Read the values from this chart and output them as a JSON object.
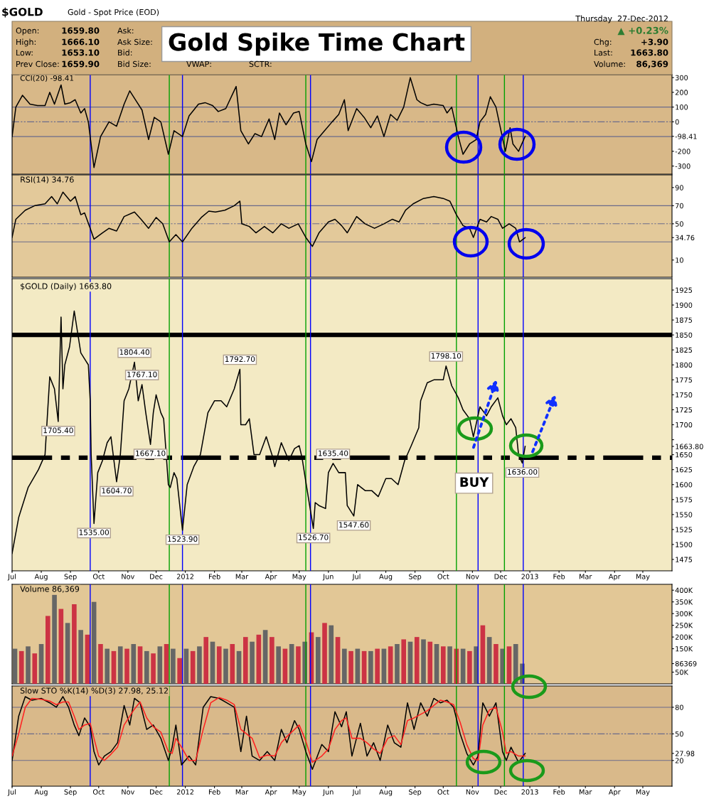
{
  "chart_data": [
    {
      "type": "line",
      "title": "Gold Spike Time Chart",
      "subtitle": "CCI(20) -98.41",
      "annotations": [
        "$GOLD",
        "Gold - Spot Price (EOD)",
        "Open:",
        "1659.80",
        "High:",
        "1666.10",
        "Low:",
        "1653.10",
        "Prev Close:",
        "1659.90",
        "Ask:",
        "Ask Size:",
        "Bid:",
        "Bid Size:",
        "VWAP:",
        "SCTR:",
        "Thursday  27-Dec-2012",
        "▲ +0.23%",
        "Chg:",
        "+3.90",
        "Last:",
        "1663.80",
        "Volume:",
        "86,369"
      ],
      "x": [
        "2011-07-01",
        "2011-07-05",
        "2011-07-12",
        "2011-07-20",
        "2011-07-28",
        "2011-08-05",
        "2011-08-10",
        "2011-08-15",
        "2011-08-22",
        "2011-08-26",
        "2011-09-01",
        "2011-09-06",
        "2011-09-12",
        "2011-09-16",
        "2011-09-20",
        "2011-09-26",
        "2011-10-03",
        "2011-10-12",
        "2011-10-20",
        "2011-10-28",
        "2011-11-03",
        "2011-11-10",
        "2011-11-16",
        "2011-11-23",
        "2011-11-29",
        "2011-12-06",
        "2011-12-14",
        "2011-12-20",
        "2011-12-29",
        "2012-01-05",
        "2012-01-15",
        "2012-01-22",
        "2012-01-30",
        "2012-02-05",
        "2012-02-13",
        "2012-02-24",
        "2012-02-29",
        "2012-03-08",
        "2012-03-15",
        "2012-03-22",
        "2012-03-30",
        "2012-04-05",
        "2012-04-10",
        "2012-04-17",
        "2012-04-25",
        "2012-05-01",
        "2012-05-08",
        "2012-05-14",
        "2012-05-20",
        "2012-05-28",
        "2012-06-05",
        "2012-06-12",
        "2012-06-18",
        "2012-06-22",
        "2012-07-01",
        "2012-07-09",
        "2012-07-16",
        "2012-07-23",
        "2012-07-30",
        "2012-08-06",
        "2012-08-13",
        "2012-08-20",
        "2012-08-27",
        "2012-09-03",
        "2012-09-07",
        "2012-09-14",
        "2012-09-21",
        "2012-10-01",
        "2012-10-05",
        "2012-10-10",
        "2012-10-17",
        "2012-10-22",
        "2012-10-29",
        "2012-11-05",
        "2012-11-09",
        "2012-11-15",
        "2012-11-20",
        "2012-11-26",
        "2012-12-01",
        "2012-12-06",
        "2012-12-11",
        "2012-12-14",
        "2012-12-20",
        "2012-12-27"
      ],
      "series": [
        {
          "color": "#000000",
          "values": [
            -100,
            100,
            180,
            120,
            110,
            110,
            200,
            120,
            250,
            120,
            130,
            150,
            60,
            90,
            0,
            -310,
            -100,
            0,
            -30,
            120,
            210,
            140,
            80,
            -120,
            30,
            0,
            -220,
            -60,
            -100,
            40,
            120,
            130,
            110,
            70,
            90,
            240,
            -60,
            -150,
            -80,
            -100,
            20,
            -120,
            60,
            -20,
            60,
            70,
            -150,
            -270,
            -120,
            -60,
            0,
            50,
            150,
            -60,
            90,
            30,
            -40,
            40,
            -100,
            50,
            10,
            100,
            300,
            150,
            130,
            110,
            120,
            110,
            60,
            100,
            -100,
            -220,
            -150,
            -120,
            0,
            50,
            170,
            100,
            -50,
            -200,
            -40,
            -150,
            -200,
            -98.41
          ]
        }
      ],
      "xlim": [
        "2011-07-01",
        "2013-06-01"
      ],
      "ylim": [
        -355,
        320
      ],
      "yticks": [
        300,
        200,
        100,
        0,
        {
          "value": -98.41,
          "label": "-98.41"
        },
        -200,
        -300
      ],
      "tick_labels": "y",
      "ref_lines": [
        {
          "axis": "y",
          "value": 100,
          "color": "#6b6b8b",
          "line_style": "solid"
        },
        {
          "axis": "y",
          "value": -100,
          "color": "#6b6b8b",
          "line_style": "solid"
        },
        {
          "axis": "y",
          "value": 0,
          "color": "#6b6b8b",
          "line_style": "dashed"
        },
        {
          "axis": "x",
          "value": "2011-09-22",
          "color": "#0000ff"
        },
        {
          "axis": "x",
          "value": "2011-12-15",
          "color": "#00a000"
        },
        {
          "axis": "x",
          "value": "2011-12-29",
          "color": "#0000ff"
        },
        {
          "axis": "x",
          "value": "2012-05-08",
          "color": "#00a000"
        },
        {
          "axis": "x",
          "value": "2012-05-13",
          "color": "#0000ff"
        },
        {
          "axis": "x",
          "value": "2012-10-15",
          "color": "#00a000"
        },
        {
          "axis": "x",
          "value": "2012-11-07",
          "color": "#0000ff"
        },
        {
          "axis": "x",
          "value": "2012-12-05",
          "color": "#00a000"
        },
        {
          "axis": "x",
          "value": "2012-12-25",
          "color": "#0000ff"
        }
      ]
    },
    {
      "type": "line",
      "title": "RSI(14) 34.76",
      "x": [
        "2011-07-01",
        "2011-07-05",
        "2011-07-15",
        "2011-07-25",
        "2011-08-05",
        "2011-08-12",
        "2011-08-18",
        "2011-08-24",
        "2011-09-01",
        "2011-09-06",
        "2011-09-12",
        "2011-09-16",
        "2011-09-22",
        "2011-09-26",
        "2011-10-05",
        "2011-10-12",
        "2011-10-20",
        "2011-10-28",
        "2011-11-08",
        "2011-11-15",
        "2011-11-23",
        "2011-12-01",
        "2011-12-08",
        "2011-12-15",
        "2011-12-22",
        "2011-12-29",
        "2012-01-08",
        "2012-01-18",
        "2012-01-26",
        "2012-02-02",
        "2012-02-12",
        "2012-02-22",
        "2012-02-28",
        "2012-03-01",
        "2012-03-09",
        "2012-03-16",
        "2012-03-25",
        "2012-04-03",
        "2012-04-12",
        "2012-04-20",
        "2012-04-30",
        "2012-05-08",
        "2012-05-15",
        "2012-05-22",
        "2012-06-01",
        "2012-06-08",
        "2012-06-15",
        "2012-06-21",
        "2012-07-01",
        "2012-07-10",
        "2012-07-20",
        "2012-07-30",
        "2012-08-08",
        "2012-08-15",
        "2012-08-22",
        "2012-08-30",
        "2012-09-10",
        "2012-09-21",
        "2012-10-01",
        "2012-10-08",
        "2012-10-15",
        "2012-10-22",
        "2012-10-29",
        "2012-11-02",
        "2012-11-09",
        "2012-11-16",
        "2012-11-21",
        "2012-11-28",
        "2012-12-03",
        "2012-12-10",
        "2012-12-17",
        "2012-12-21",
        "2012-12-27"
      ],
      "series": [
        {
          "color": "#000000",
          "values": [
            35,
            55,
            65,
            70,
            72,
            80,
            72,
            85,
            75,
            80,
            60,
            62,
            45,
            33,
            40,
            45,
            42,
            58,
            63,
            55,
            45,
            57,
            50,
            30,
            38,
            30,
            45,
            57,
            64,
            63,
            65,
            70,
            75,
            50,
            47,
            40,
            47,
            40,
            50,
            45,
            50,
            35,
            25,
            40,
            52,
            55,
            48,
            40,
            58,
            50,
            45,
            50,
            55,
            52,
            65,
            72,
            78,
            80,
            78,
            75,
            60,
            48,
            45,
            35,
            55,
            52,
            58,
            55,
            45,
            50,
            45,
            30,
            34.76
          ]
        }
      ],
      "xlim": [
        "2011-07-01",
        "2013-06-01"
      ],
      "ylim": [
        -9,
        104
      ],
      "yticks": [
        90,
        70,
        50,
        {
          "value": 34.76,
          "label": "34.76"
        },
        10
      ],
      "tick_labels": "y",
      "ref_lines": [
        {
          "axis": "y",
          "value": 70,
          "color": "#6b6b8b",
          "line_style": "solid"
        },
        {
          "axis": "y",
          "value": 30,
          "color": "#6b6b8b",
          "line_style": "solid"
        },
        {
          "axis": "y",
          "value": 50,
          "color": "#6b6b8b",
          "line_style": "dashed"
        },
        {
          "axis": "x",
          "value": "2011-09-22",
          "color": "#0000ff"
        },
        {
          "axis": "x",
          "value": "2011-12-15",
          "color": "#00a000"
        },
        {
          "axis": "x",
          "value": "2011-12-29",
          "color": "#0000ff"
        },
        {
          "axis": "x",
          "value": "2012-05-08",
          "color": "#00a000"
        },
        {
          "axis": "x",
          "value": "2012-05-13",
          "color": "#0000ff"
        },
        {
          "axis": "x",
          "value": "2012-10-15",
          "color": "#00a000"
        },
        {
          "axis": "x",
          "value": "2012-11-07",
          "color": "#0000ff"
        },
        {
          "axis": "x",
          "value": "2012-12-05",
          "color": "#00a000"
        },
        {
          "axis": "x",
          "value": "2012-12-25",
          "color": "#0000ff"
        }
      ]
    },
    {
      "type": "line",
      "title": "$GOLD (Daily) 1663.80",
      "annotations": [
        {
          "text": "1705.40",
          "x": "2011-08-19",
          "y": 1705.4
        },
        {
          "text": "1535.00",
          "x": "2011-09-26",
          "y": 1535.0
        },
        {
          "text": "1804.40",
          "x": "2011-11-08",
          "y": 1804.4
        },
        {
          "text": "1767.10",
          "x": "2011-11-16",
          "y": 1767.1
        },
        {
          "text": "1667.10",
          "x": "2011-11-25",
          "y": 1667.1
        },
        {
          "text": "1604.70",
          "x": "2011-10-20",
          "y": 1604.7
        },
        {
          "text": "1523.90",
          "x": "2011-12-29",
          "y": 1523.9
        },
        {
          "text": "1792.70",
          "x": "2012-02-28",
          "y": 1792.7
        },
        {
          "text": "1526.70",
          "x": "2012-05-16",
          "y": 1526.7
        },
        {
          "text": "1635.40",
          "x": "2012-06-06",
          "y": 1635.4
        },
        {
          "text": "1547.60",
          "x": "2012-06-28",
          "y": 1547.6
        },
        {
          "text": "1798.10",
          "x": "2012-10-04",
          "y": 1798.1
        },
        {
          "text": "1636.00",
          "x": "2012-12-24",
          "y": 1636.0
        },
        "BUY"
      ],
      "x": [
        "2011-07-01",
        "2011-07-08",
        "2011-07-18",
        "2011-07-29",
        "2011-08-05",
        "2011-08-10",
        "2011-08-15",
        "2011-08-19",
        "2011-08-22",
        "2011-08-24",
        "2011-08-26",
        "2011-08-31",
        "2011-09-05",
        "2011-09-08",
        "2011-09-12",
        "2011-09-16",
        "2011-09-20",
        "2011-09-22",
        "2011-09-23",
        "2011-09-26",
        "2011-09-30",
        "2011-10-05",
        "2011-10-10",
        "2011-10-14",
        "2011-10-20",
        "2011-10-24",
        "2011-10-28",
        "2011-11-02",
        "2011-11-08",
        "2011-11-12",
        "2011-11-16",
        "2011-11-20",
        "2011-11-25",
        "2011-11-28",
        "2011-12-01",
        "2011-12-06",
        "2011-12-09",
        "2011-12-14",
        "2011-12-16",
        "2011-12-20",
        "2011-12-23",
        "2011-12-29",
        "2012-01-03",
        "2012-01-10",
        "2012-01-17",
        "2012-01-25",
        "2012-02-01",
        "2012-02-08",
        "2012-02-14",
        "2012-02-22",
        "2012-02-28",
        "2012-02-29",
        "2012-03-05",
        "2012-03-09",
        "2012-03-14",
        "2012-03-20",
        "2012-03-27",
        "2012-04-03",
        "2012-04-05",
        "2012-04-12",
        "2012-04-20",
        "2012-04-26",
        "2012-05-01",
        "2012-05-04",
        "2012-05-09",
        "2012-05-16",
        "2012-05-18",
        "2012-05-22",
        "2012-05-29",
        "2012-06-01",
        "2012-06-06",
        "2012-06-12",
        "2012-06-19",
        "2012-06-21",
        "2012-06-28",
        "2012-07-02",
        "2012-07-10",
        "2012-07-17",
        "2012-07-24",
        "2012-08-01",
        "2012-08-07",
        "2012-08-14",
        "2012-08-21",
        "2012-08-28",
        "2012-09-05",
        "2012-09-07",
        "2012-09-14",
        "2012-09-21",
        "2012-10-01",
        "2012-10-04",
        "2012-10-10",
        "2012-10-17",
        "2012-10-22",
        "2012-10-29",
        "2012-11-02",
        "2012-11-09",
        "2012-11-16",
        "2012-11-21",
        "2012-11-28",
        "2012-12-03",
        "2012-12-07",
        "2012-12-12",
        "2012-12-17",
        "2012-12-20",
        "2012-12-24",
        "2012-12-27"
      ],
      "series": [
        {
          "color": "#000000",
          "values": [
            1485,
            1545,
            1595,
            1625,
            1650,
            1780,
            1760,
            1705.4,
            1880,
            1760,
            1800,
            1830,
            1890,
            1860,
            1820,
            1810,
            1800,
            1740,
            1650,
            1535.0,
            1620,
            1640,
            1670,
            1680,
            1604.7,
            1650,
            1740,
            1760,
            1804.4,
            1740,
            1767.1,
            1720,
            1667.1,
            1720,
            1750,
            1720,
            1710,
            1600,
            1595,
            1620,
            1610,
            1523.9,
            1600,
            1630,
            1650,
            1720,
            1740,
            1740,
            1730,
            1760,
            1792.7,
            1700,
            1700,
            1710,
            1650,
            1650,
            1680,
            1645,
            1630,
            1670,
            1640,
            1660,
            1665,
            1645,
            1595,
            1526.7,
            1570,
            1565,
            1560,
            1620,
            1635.4,
            1620,
            1620,
            1565,
            1547.6,
            1600,
            1590,
            1590,
            1580,
            1610,
            1610,
            1600,
            1640,
            1665,
            1695,
            1740,
            1770,
            1775,
            1775,
            1798.1,
            1765,
            1745,
            1725,
            1710,
            1680,
            1730,
            1715,
            1730,
            1745,
            1715,
            1700,
            1710,
            1695,
            1650,
            1636.0,
            1663.8
          ]
        }
      ],
      "xlim": [
        "2011-07-01",
        "2013-06-01"
      ],
      "ylim": [
        1456,
        1944
      ],
      "yticks": [
        1475,
        1500,
        1525,
        1550,
        1575,
        1600,
        1625,
        1650,
        {
          "value": 1663.8,
          "label": "1663.80"
        },
        {
          "value": 1675,
          "label": null
        },
        1700,
        1725,
        1750,
        1775,
        1800,
        1825,
        1850,
        1875,
        1900,
        1925
      ],
      "xticks": [
        {
          "value": "2011-07-01",
          "label": "Jul"
        },
        {
          "value": "2011-08-01",
          "label": "Aug"
        },
        {
          "value": "2011-09-01",
          "label": "Sep"
        },
        {
          "value": "2011-10-01",
          "label": "Oct"
        },
        {
          "value": "2011-11-01",
          "label": "Nov"
        },
        {
          "value": "2011-12-01",
          "label": "Dec"
        },
        {
          "value": "2012-01-01",
          "label": "2012"
        },
        {
          "value": "2012-02-01",
          "label": "Feb"
        },
        {
          "value": "2012-03-01",
          "label": "Mar"
        },
        {
          "value": "2012-04-01",
          "label": "Apr"
        },
        {
          "value": "2012-05-01",
          "label": "May"
        },
        {
          "value": "2012-06-01",
          "label": "Jun"
        },
        {
          "value": "2012-07-01",
          "label": "Jul"
        },
        {
          "value": "2012-08-01",
          "label": "Aug"
        },
        {
          "value": "2012-09-01",
          "label": "Sep"
        },
        {
          "value": "2012-10-01",
          "label": "Oct"
        },
        {
          "value": "2012-11-01",
          "label": "Nov"
        },
        {
          "value": "2012-12-01",
          "label": "Dec"
        },
        {
          "value": "2013-01-01",
          "label": "2013"
        },
        {
          "value": "2013-02-01",
          "label": "Feb"
        },
        {
          "value": "2013-03-01",
          "label": "Mar"
        },
        {
          "value": "2013-04-01",
          "label": "Apr"
        },
        {
          "value": "2013-05-01",
          "label": "May"
        }
      ],
      "ref_lines": [
        {
          "axis": "y",
          "value": 1850,
          "color": "#000000",
          "line_style": "solid"
        },
        {
          "axis": "y",
          "value": 1645,
          "color": "#000000",
          "line_style": "dashed"
        },
        {
          "axis": "x",
          "value": "2011-09-22",
          "color": "#0000ff"
        },
        {
          "axis": "x",
          "value": "2011-12-15",
          "color": "#00a000"
        },
        {
          "axis": "x",
          "value": "2011-12-29",
          "color": "#0000ff"
        },
        {
          "axis": "x",
          "value": "2012-05-08",
          "color": "#00a000"
        },
        {
          "axis": "x",
          "value": "2012-05-13",
          "color": "#0000ff"
        },
        {
          "axis": "x",
          "value": "2012-10-15",
          "color": "#00a000"
        },
        {
          "axis": "x",
          "value": "2012-11-07",
          "color": "#0000ff"
        },
        {
          "axis": "x",
          "value": "2012-12-05",
          "color": "#00a000"
        },
        {
          "axis": "x",
          "value": "2012-12-25",
          "color": "#0000ff"
        }
      ]
    },
    {
      "type": "bar",
      "title": "Volume 86,369",
      "x": [
        "2011-07-04",
        "2011-07-11",
        "2011-07-18",
        "2011-07-25",
        "2011-08-01",
        "2011-08-08",
        "2011-08-15",
        "2011-08-22",
        "2011-08-29",
        "2011-09-05",
        "2011-09-12",
        "2011-09-19",
        "2011-09-26",
        "2011-10-03",
        "2011-10-10",
        "2011-10-17",
        "2011-10-24",
        "2011-10-31",
        "2011-11-07",
        "2011-11-14",
        "2011-11-21",
        "2011-11-28",
        "2011-12-05",
        "2011-12-12",
        "2011-12-19",
        "2011-12-26",
        "2012-01-02",
        "2012-01-09",
        "2012-01-16",
        "2012-01-23",
        "2012-01-30",
        "2012-02-06",
        "2012-02-13",
        "2012-02-20",
        "2012-02-27",
        "2012-03-05",
        "2012-03-12",
        "2012-03-19",
        "2012-03-26",
        "2012-04-02",
        "2012-04-09",
        "2012-04-16",
        "2012-04-23",
        "2012-04-30",
        "2012-05-07",
        "2012-05-14",
        "2012-05-21",
        "2012-05-28",
        "2012-06-04",
        "2012-06-11",
        "2012-06-18",
        "2012-06-25",
        "2012-07-02",
        "2012-07-09",
        "2012-07-16",
        "2012-07-23",
        "2012-07-30",
        "2012-08-06",
        "2012-08-13",
        "2012-08-20",
        "2012-08-27",
        "2012-09-03",
        "2012-09-10",
        "2012-09-17",
        "2012-09-24",
        "2012-10-01",
        "2012-10-08",
        "2012-10-15",
        "2012-10-22",
        "2012-10-29",
        "2012-11-05",
        "2012-11-12",
        "2012-11-19",
        "2012-11-26",
        "2012-12-03",
        "2012-12-10",
        "2012-12-17",
        "2012-12-24"
      ],
      "values": [
        150000,
        140000,
        160000,
        130000,
        170000,
        290000,
        380000,
        320000,
        260000,
        340000,
        230000,
        210000,
        350000,
        170000,
        150000,
        140000,
        160000,
        150000,
        170000,
        160000,
        140000,
        130000,
        160000,
        170000,
        150000,
        110000,
        150000,
        140000,
        160000,
        200000,
        180000,
        160000,
        150000,
        170000,
        140000,
        200000,
        180000,
        210000,
        230000,
        200000,
        160000,
        150000,
        170000,
        160000,
        180000,
        220000,
        200000,
        260000,
        250000,
        200000,
        150000,
        140000,
        150000,
        140000,
        140000,
        150000,
        150000,
        160000,
        170000,
        190000,
        180000,
        200000,
        190000,
        180000,
        170000,
        160000,
        160000,
        150000,
        150000,
        140000,
        160000,
        250000,
        200000,
        170000,
        150000,
        160000,
        170000,
        86369
      ],
      "colors": [
        "#666666",
        "#cc3344",
        "#666666",
        "#cc3344",
        "#666666",
        "#cc3344",
        "#666666",
        "#cc3344",
        "#666666",
        "#cc3344",
        "#666666",
        "#cc3344",
        "#666666",
        "#cc3344",
        "#666666",
        "#cc3344",
        "#666666",
        "#cc3344",
        "#666666",
        "#cc3344",
        "#666666",
        "#cc3344",
        "#666666",
        "#cc3344",
        "#666666",
        "#cc3344",
        "#666666",
        "#cc3344",
        "#666666",
        "#cc3344",
        "#666666",
        "#cc3344",
        "#666666",
        "#cc3344",
        "#666666",
        "#cc3344",
        "#666666",
        "#cc3344",
        "#666666",
        "#cc3344",
        "#666666",
        "#cc3344",
        "#666666",
        "#cc3344",
        "#666666",
        "#cc3344",
        "#666666",
        "#cc3344",
        "#666666",
        "#cc3344",
        "#666666",
        "#cc3344",
        "#666666",
        "#cc3344",
        "#666666",
        "#cc3344",
        "#666666",
        "#cc3344",
        "#666666",
        "#cc3344",
        "#666666",
        "#cc3344",
        "#666666",
        "#cc3344",
        "#666666",
        "#cc3344",
        "#666666",
        "#cc3344",
        "#666666",
        "#cc3344",
        "#666666",
        "#cc3344",
        "#666666",
        "#cc3344",
        "#666666",
        "#cc3344",
        "#666666",
        "#666666"
      ],
      "xlim": [
        "2011-07-01",
        "2013-06-01"
      ],
      "ylim": [
        0,
        425000
      ],
      "yticks": [
        {
          "value": 50000,
          "label": "50K"
        },
        {
          "value": 86369,
          "label": "86369"
        },
        {
          "value": 150000,
          "label": "150K"
        },
        {
          "value": 200000,
          "label": "200K"
        },
        {
          "value": 250000,
          "label": "250K"
        },
        {
          "value": 300000,
          "label": "300K"
        },
        {
          "value": 350000,
          "label": "350K"
        },
        {
          "value": 400000,
          "label": "400K"
        }
      ],
      "tick_labels": "y",
      "ref_lines": [
        {
          "axis": "x",
          "value": "2011-09-22",
          "color": "#0000ff"
        },
        {
          "axis": "x",
          "value": "2011-12-15",
          "color": "#00a000"
        },
        {
          "axis": "x",
          "value": "2011-12-29",
          "color": "#0000ff"
        },
        {
          "axis": "x",
          "value": "2012-05-08",
          "color": "#00a000"
        },
        {
          "axis": "x",
          "value": "2012-05-13",
          "color": "#0000ff"
        },
        {
          "axis": "x",
          "value": "2012-10-15",
          "color": "#00a000"
        },
        {
          "axis": "x",
          "value": "2012-11-07",
          "color": "#0000ff"
        },
        {
          "axis": "x",
          "value": "2012-12-05",
          "color": "#00a000"
        },
        {
          "axis": "x",
          "value": "2012-12-25",
          "color": "#0000ff"
        }
      ]
    },
    {
      "type": "line",
      "title": "Slow STO %K(14) %D(3) 27.98, 25.12",
      "x": [
        "2011-07-01",
        "2011-07-08",
        "2011-07-15",
        "2011-07-22",
        "2011-08-01",
        "2011-08-10",
        "2011-08-17",
        "2011-08-24",
        "2011-08-30",
        "2011-09-05",
        "2011-09-10",
        "2011-09-16",
        "2011-09-22",
        "2011-09-26",
        "2011-10-01",
        "2011-10-07",
        "2011-10-14",
        "2011-10-21",
        "2011-10-28",
        "2011-11-03",
        "2011-11-08",
        "2011-11-14",
        "2011-11-21",
        "2011-11-28",
        "2011-12-06",
        "2011-12-14",
        "2011-12-18",
        "2011-12-22",
        "2011-12-28",
        "2012-01-05",
        "2012-01-12",
        "2012-01-20",
        "2012-01-28",
        "2012-02-06",
        "2012-02-14",
        "2012-02-22",
        "2012-02-29",
        "2012-03-06",
        "2012-03-12",
        "2012-03-20",
        "2012-03-28",
        "2012-04-05",
        "2012-04-12",
        "2012-04-18",
        "2012-04-26",
        "2012-05-01",
        "2012-05-08",
        "2012-05-15",
        "2012-05-25",
        "2012-06-01",
        "2012-06-08",
        "2012-06-15",
        "2012-06-20",
        "2012-06-26",
        "2012-07-05",
        "2012-07-12",
        "2012-07-19",
        "2012-07-26",
        "2012-08-03",
        "2012-08-10",
        "2012-08-17",
        "2012-08-24",
        "2012-08-31",
        "2012-09-07",
        "2012-09-14",
        "2012-09-21",
        "2012-09-28",
        "2012-10-05",
        "2012-10-12",
        "2012-10-19",
        "2012-10-26",
        "2012-11-02",
        "2012-11-07",
        "2012-11-12",
        "2012-11-19",
        "2012-11-26",
        "2012-12-03",
        "2012-12-07",
        "2012-12-12",
        "2012-12-20",
        "2012-12-27"
      ],
      "series": [
        {
          "color": "#ff2020",
          "values": [
            25,
            50,
            80,
            90,
            89,
            87,
            83,
            86,
            86,
            70,
            55,
            60,
            62,
            45,
            25,
            20,
            27,
            35,
            60,
            70,
            78,
            86,
            68,
            58,
            52,
            30,
            28,
            45,
            35,
            20,
            20,
            55,
            85,
            91,
            88,
            83,
            55,
            50,
            45,
            23,
            26,
            25,
            40,
            47,
            55,
            60,
            42,
            18,
            25,
            33,
            55,
            65,
            68,
            45,
            45,
            40,
            33,
            28,
            45,
            48,
            38,
            65,
            68,
            72,
            76,
            82,
            88,
            86,
            83,
            63,
            38,
            22,
            20,
            60,
            77,
            80,
            52,
            28,
            30,
            25,
            25.12
          ]
        },
        {
          "color": "#000000",
          "values": [
            20,
            70,
            92,
            88,
            90,
            85,
            80,
            92,
            80,
            60,
            48,
            68,
            58,
            30,
            15,
            25,
            30,
            40,
            82,
            60,
            90,
            85,
            55,
            60,
            45,
            20,
            35,
            60,
            15,
            25,
            15,
            80,
            92,
            90,
            85,
            80,
            30,
            70,
            25,
            20,
            30,
            20,
            55,
            40,
            65,
            55,
            30,
            10,
            38,
            30,
            75,
            58,
            75,
            25,
            62,
            25,
            40,
            20,
            60,
            40,
            35,
            85,
            55,
            85,
            70,
            90,
            85,
            88,
            80,
            50,
            28,
            15,
            25,
            85,
            70,
            85,
            30,
            20,
            35,
            18,
            27.98
          ]
        }
      ],
      "xlim": [
        "2011-07-01",
        "2013-06-01"
      ],
      "ylim": [
        -9,
        104
      ],
      "yticks": [
        80,
        50,
        {
          "value": 27.98,
          "label": "27.98"
        },
        {
          "value": 20,
          "label": "20"
        }
      ],
      "xticks": [
        {
          "value": "2011-07-01",
          "label": "Jul"
        },
        {
          "value": "2011-08-01",
          "label": "Aug"
        },
        {
          "value": "2011-09-01",
          "label": "Sep"
        },
        {
          "value": "2011-10-01",
          "label": "Oct"
        },
        {
          "value": "2011-11-01",
          "label": "Nov"
        },
        {
          "value": "2011-12-01",
          "label": "Dec"
        },
        {
          "value": "2012-01-01",
          "label": "2012"
        },
        {
          "value": "2012-02-01",
          "label": "Feb"
        },
        {
          "value": "2012-03-01",
          "label": "Mar"
        },
        {
          "value": "2012-04-01",
          "label": "Apr"
        },
        {
          "value": "2012-05-01",
          "label": "May"
        },
        {
          "value": "2012-06-01",
          "label": "Jun"
        },
        {
          "value": "2012-07-01",
          "label": "Jul"
        },
        {
          "value": "2012-08-01",
          "label": "Aug"
        },
        {
          "value": "2012-09-01",
          "label": "Sep"
        },
        {
          "value": "2012-10-01",
          "label": "Oct"
        },
        {
          "value": "2012-11-01",
          "label": "Nov"
        },
        {
          "value": "2012-12-01",
          "label": "Dec"
        },
        {
          "value": "2013-01-01",
          "label": "2013"
        },
        {
          "value": "2013-02-01",
          "label": "Feb"
        },
        {
          "value": "2013-03-01",
          "label": "Mar"
        },
        {
          "value": "2013-04-01",
          "label": "Apr"
        },
        {
          "value": "2013-05-01",
          "label": "May"
        }
      ],
      "ref_lines": [
        {
          "axis": "y",
          "value": 80,
          "color": "#6b6b8b",
          "line_style": "solid"
        },
        {
          "axis": "y",
          "value": 20,
          "color": "#6b6b8b",
          "line_style": "solid"
        },
        {
          "axis": "y",
          "value": 50,
          "color": "#6b6b8b",
          "line_style": "dashed"
        },
        {
          "axis": "x",
          "value": "2011-09-22",
          "color": "#0000ff"
        },
        {
          "axis": "x",
          "value": "2011-12-15",
          "color": "#00a000"
        },
        {
          "axis": "x",
          "value": "2011-12-29",
          "color": "#0000ff"
        },
        {
          "axis": "x",
          "value": "2012-05-08",
          "color": "#00a000"
        },
        {
          "axis": "x",
          "value": "2012-05-13",
          "color": "#0000ff"
        },
        {
          "axis": "x",
          "value": "2012-10-15",
          "color": "#00a000"
        },
        {
          "axis": "x",
          "value": "2012-11-07",
          "color": "#0000ff"
        },
        {
          "axis": "x",
          "value": "2012-12-05",
          "color": "#00a000"
        },
        {
          "axis": "x",
          "value": "2012-12-25",
          "color": "#0000ff"
        }
      ]
    }
  ]
}
